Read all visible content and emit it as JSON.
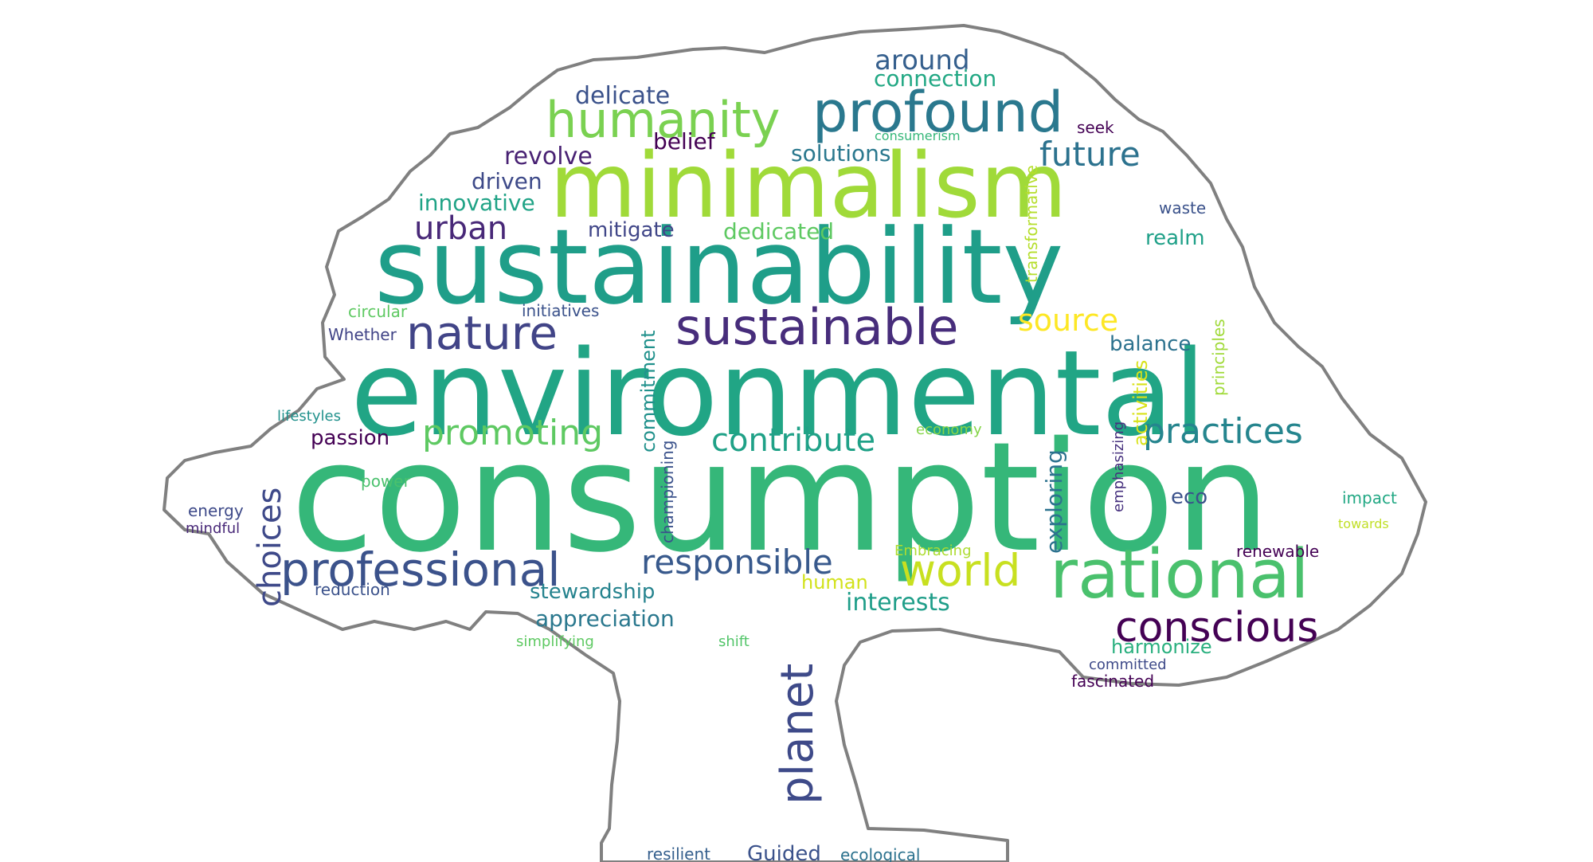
{
  "words": [
    {
      "text": "consumption",
      "color": "#35b779"
    },
    {
      "text": "environmental",
      "color": "#21a585"
    },
    {
      "text": "sustainability",
      "color": "#1f9e89"
    },
    {
      "text": "minimalism",
      "color": "#a0da39"
    },
    {
      "text": "profound",
      "color": "#2a788e"
    },
    {
      "text": "humanity",
      "color": "#7ad151"
    },
    {
      "text": "sustainable",
      "color": "#472d7b"
    },
    {
      "text": "nature",
      "color": "#414487"
    },
    {
      "text": "rational",
      "color": "#4ac16d"
    },
    {
      "text": "professional",
      "color": "#3b528b"
    },
    {
      "text": "conscious",
      "color": "#440154"
    },
    {
      "text": "world",
      "color": "#c8e020"
    },
    {
      "text": "responsible",
      "color": "#38598c"
    },
    {
      "text": "practices",
      "color": "#25858e"
    },
    {
      "text": "planet",
      "color": "#3e4a89"
    },
    {
      "text": "future",
      "color": "#2c728e"
    },
    {
      "text": "promoting",
      "color": "#5ec962"
    },
    {
      "text": "contribute",
      "color": "#1fa187"
    },
    {
      "text": "source",
      "color": "#fde725"
    },
    {
      "text": "urban",
      "color": "#482878"
    },
    {
      "text": "choices",
      "color": "#3e4989"
    },
    {
      "text": "around",
      "color": "#355f8d"
    },
    {
      "text": "connection",
      "color": "#22a884"
    },
    {
      "text": "delicate",
      "color": "#3b528b"
    },
    {
      "text": "belief",
      "color": "#440154"
    },
    {
      "text": "revolve",
      "color": "#482173"
    },
    {
      "text": "solutions",
      "color": "#2a788e"
    },
    {
      "text": "driven",
      "color": "#3e4a89"
    },
    {
      "text": "innovative",
      "color": "#20a386"
    },
    {
      "text": "mitigate",
      "color": "#404688"
    },
    {
      "text": "dedicated",
      "color": "#5ec962"
    },
    {
      "text": "realm",
      "color": "#1fa088"
    },
    {
      "text": "waste",
      "color": "#3b528b"
    },
    {
      "text": "seek",
      "color": "#440154"
    },
    {
      "text": "consumerism",
      "color": "#35b779"
    },
    {
      "text": "transformative",
      "color": "#b5de2b"
    },
    {
      "text": "circular",
      "color": "#5ec962"
    },
    {
      "text": "initiatives",
      "color": "#3b528b"
    },
    {
      "text": "Whether",
      "color": "#414487"
    },
    {
      "text": "commitment",
      "color": "#21918c"
    },
    {
      "text": "balance",
      "color": "#2c728e"
    },
    {
      "text": "principles",
      "color": "#a0da39"
    },
    {
      "text": "activities",
      "color": "#d8e219"
    },
    {
      "text": "lifestyles",
      "color": "#21918c"
    },
    {
      "text": "passion",
      "color": "#440154"
    },
    {
      "text": "economy",
      "color": "#86d549"
    },
    {
      "text": "exploring",
      "color": "#2c728e"
    },
    {
      "text": "emphasizing",
      "color": "#46307e"
    },
    {
      "text": "championing",
      "color": "#3b528b"
    },
    {
      "text": "power",
      "color": "#4ac16d"
    },
    {
      "text": "energy",
      "color": "#3e4a89"
    },
    {
      "text": "mindful",
      "color": "#482878"
    },
    {
      "text": "eco",
      "color": "#3b528b"
    },
    {
      "text": "impact",
      "color": "#22a884"
    },
    {
      "text": "towards",
      "color": "#c0df25"
    },
    {
      "text": "Embracing",
      "color": "#addc30"
    },
    {
      "text": "renewable",
      "color": "#440154"
    },
    {
      "text": "human",
      "color": "#d2e21b"
    },
    {
      "text": "interests",
      "color": "#1f9e89"
    },
    {
      "text": "stewardship",
      "color": "#25838e"
    },
    {
      "text": "reduction",
      "color": "#3b528b"
    },
    {
      "text": "appreciation",
      "color": "#2a788e"
    },
    {
      "text": "simplifying",
      "color": "#5ec962"
    },
    {
      "text": "shift",
      "color": "#52c569"
    },
    {
      "text": "harmonize",
      "color": "#2ab07f"
    },
    {
      "text": "committed",
      "color": "#3e4a89"
    },
    {
      "text": "fascinated",
      "color": "#440154"
    },
    {
      "text": "resilient",
      "color": "#355f8d"
    },
    {
      "text": "Guided",
      "color": "#3b528b"
    },
    {
      "text": "ecological",
      "color": "#2c728e"
    }
  ]
}
